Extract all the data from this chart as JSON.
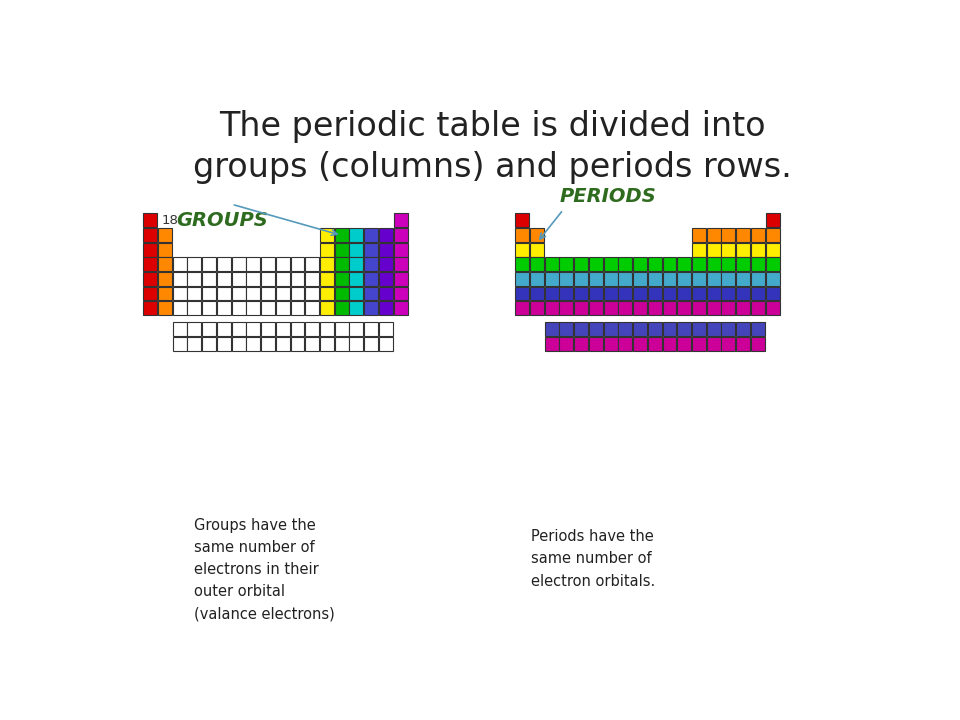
{
  "title_line1": "The periodic table is divided into",
  "title_line2": "groups (columns) and periods rows.",
  "title_fontsize": 24,
  "title_color": "#222222",
  "background_color": "#ffffff",
  "groups_label_num": "18",
  "groups_label_word": "GROUPS",
  "periods_label": "PERIODS",
  "label_color": "#2e6b1e",
  "groups_text": "Groups have the\nsame number of\nelectrons in their\nouter orbital\n(valance electrons)",
  "periods_text": "Periods have the\nsame number of\nelectron orbitals.",
  "footnote_fontsize": 10.5,
  "col_colors": {
    "1": "#dd0000",
    "2": "#ff8800",
    "13": "#ffee00",
    "14": "#00bb00",
    "15": "#00cccc",
    "16": "#4444cc",
    "17": "#6600cc",
    "18": "#cc00bb"
  },
  "row_colors": {
    "1": "#dd0000",
    "2": "#ff8800",
    "3": "#ffee00",
    "4": "#00cc00",
    "5": "#44aacc",
    "6": "#3333bb",
    "7": "#cc0099"
  },
  "lant_color_R": "#4444bb",
  "act_color_R": "#cc0099"
}
